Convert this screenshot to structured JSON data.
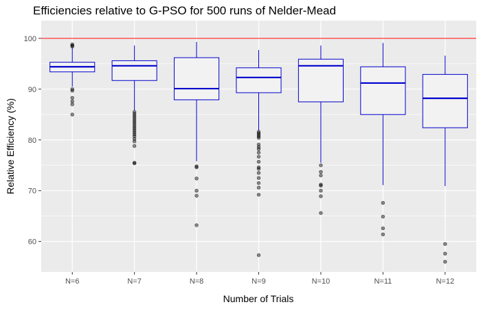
{
  "chart_data": {
    "type": "box",
    "title": "Efficiencies relative to G-PSO for 500 runs of Nelder-Mead",
    "xlabel": "Number of Trials",
    "ylabel": "Relative Efficiency (%)",
    "ylim": [
      54,
      103.5
    ],
    "yticks": [
      60,
      70,
      80,
      90,
      100
    ],
    "reference_line": 100,
    "categories": [
      "N=6",
      "N=7",
      "N=8",
      "N=9",
      "N=10",
      "N=11",
      "N=12"
    ],
    "boxes": [
      {
        "q1": 93.4,
        "median": 94.4,
        "q3": 95.3,
        "whisker_low": 90.5,
        "whisker_high": 98.2,
        "outliers": [
          98.8,
          98.6,
          98.4,
          90.0,
          89.7,
          88.3,
          87.6,
          87.0,
          85.0
        ]
      },
      {
        "q1": 91.7,
        "median": 94.6,
        "q3": 95.6,
        "whisker_low": 85.8,
        "whisker_high": 98.6,
        "outliers": [
          85.5,
          85.1,
          84.7,
          84.3,
          83.9,
          83.5,
          83.1,
          82.7,
          82.3,
          81.9,
          81.5,
          81.1,
          80.7,
          80.2,
          79.7,
          78.8,
          75.5,
          75.4
        ]
      },
      {
        "q1": 87.9,
        "median": 90.1,
        "q3": 96.2,
        "whisker_low": 75.8,
        "whisker_high": 99.3,
        "outliers": [
          74.8,
          74.6,
          72.4,
          70.0,
          69.0,
          63.2
        ]
      },
      {
        "q1": 89.3,
        "median": 92.3,
        "q3": 94.2,
        "whisker_low": 81.9,
        "whisker_high": 97.7,
        "outliers": [
          81.6,
          81.3,
          81.0,
          80.7,
          80.4,
          79.1,
          78.6,
          78.2,
          77.5,
          76.7,
          75.7,
          74.6,
          74.3,
          73.5,
          72.5,
          71.5,
          70.6,
          69.2,
          57.3
        ]
      },
      {
        "q1": 87.5,
        "median": 94.6,
        "q3": 95.9,
        "whisker_low": 75.5,
        "whisker_high": 98.6,
        "outliers": [
          75.0,
          73.7,
          73.0,
          71.2,
          71.0,
          70.0,
          68.9,
          65.6
        ]
      },
      {
        "q1": 85.0,
        "median": 91.2,
        "q3": 94.4,
        "whisker_low": 71.1,
        "whisker_high": 99.1,
        "outliers": [
          67.6,
          64.9,
          62.6,
          61.4
        ]
      },
      {
        "q1": 82.4,
        "median": 88.2,
        "q3": 92.9,
        "whisker_low": 70.9,
        "whisker_high": 96.6,
        "outliers": [
          59.5,
          57.6,
          56.0
        ]
      }
    ],
    "grid": true,
    "legend": "none",
    "colors": {
      "box_stroke": "#0000cd",
      "box_fill": "#f2f2f2",
      "reference_line": "#ff0000",
      "outlier": "#000000",
      "panel_bg": "#ebebeb",
      "grid": "#ffffff"
    }
  }
}
